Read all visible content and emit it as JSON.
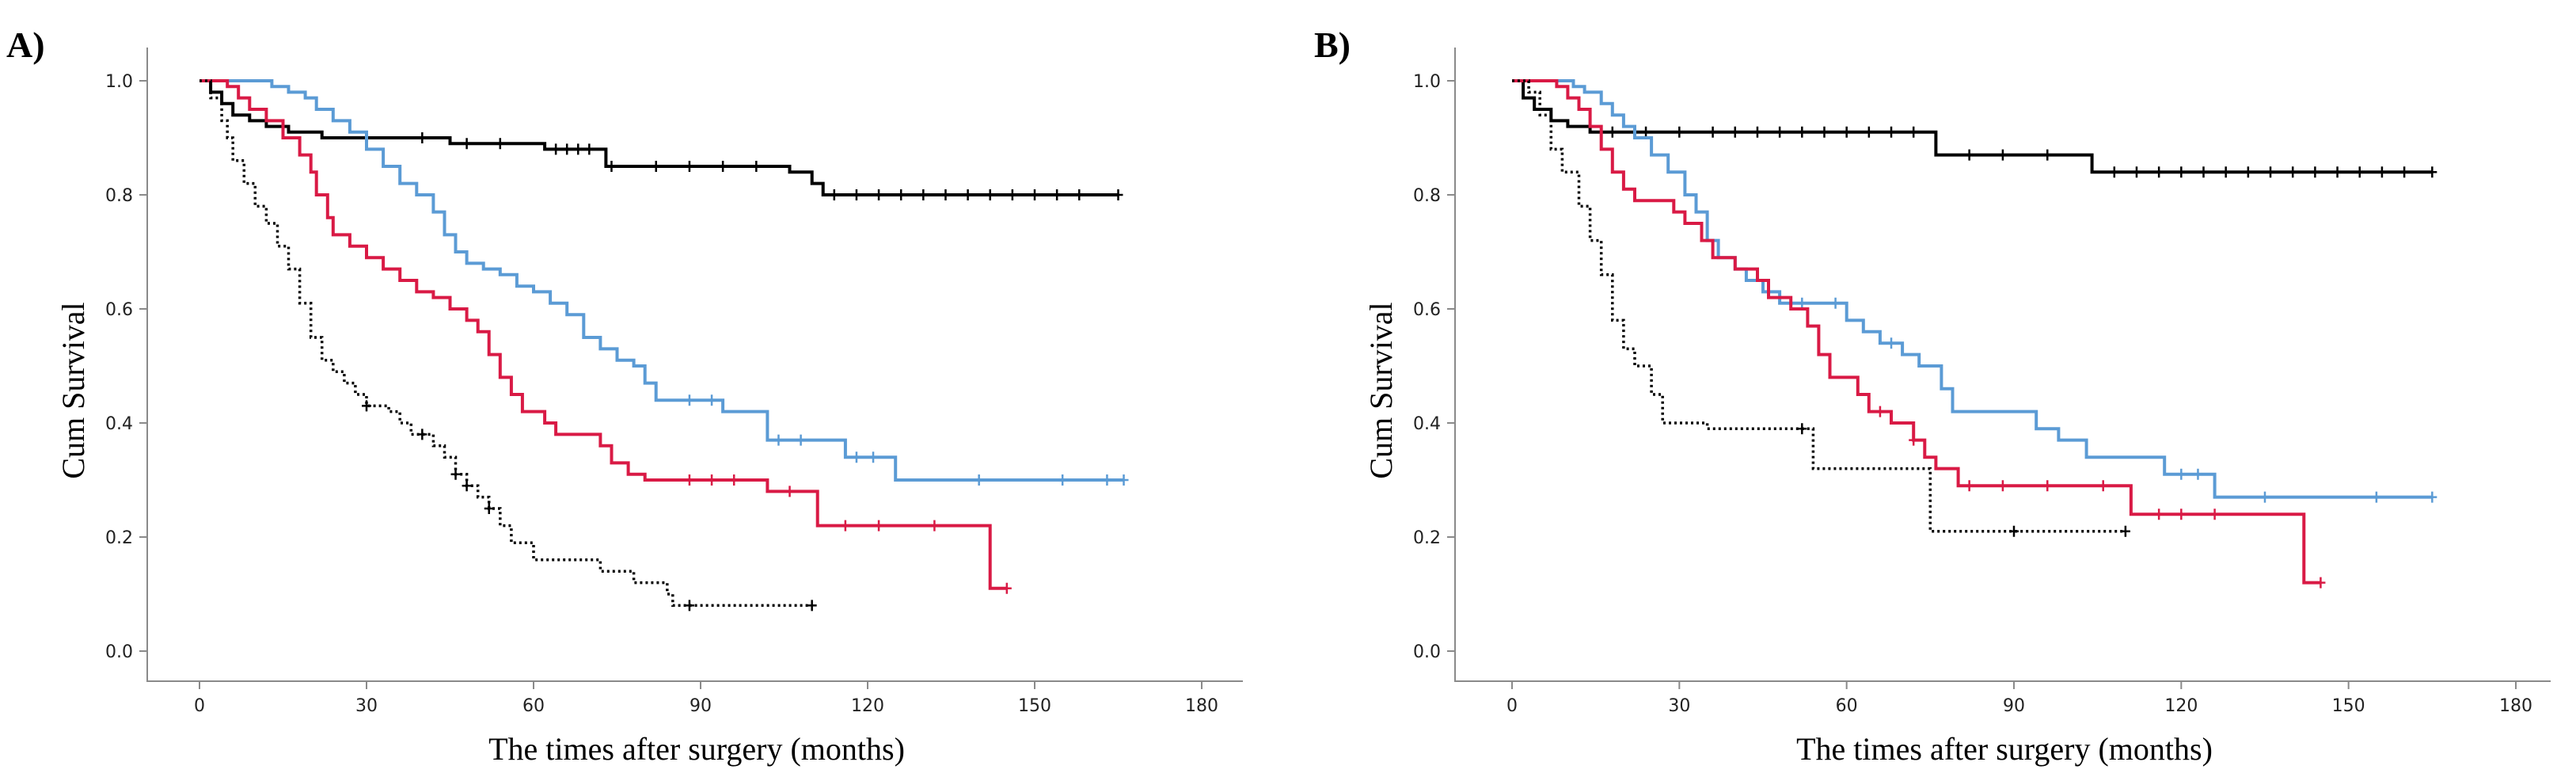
{
  "chart_data": [
    {
      "type": "line",
      "panel_label": "A)",
      "title": "",
      "xlabel": "The times after surgery (months)",
      "ylabel": "Cum Survival",
      "xlim": [
        0,
        180
      ],
      "ylim": [
        0,
        1.0
      ],
      "xticks": [
        "0",
        "30",
        "60",
        "90",
        "120",
        "150",
        "180"
      ],
      "yticks": [
        "0.0",
        "0.2",
        "0.4",
        "0.6",
        "0.8",
        "1.0"
      ],
      "series": [
        {
          "color": "#000000",
          "dash": "solid",
          "points": [
            [
              0,
              1.0
            ],
            [
              2,
              0.98
            ],
            [
              4,
              0.96
            ],
            [
              6,
              0.94
            ],
            [
              9,
              0.93
            ],
            [
              12,
              0.92
            ],
            [
              16,
              0.91
            ],
            [
              22,
              0.9
            ],
            [
              45,
              0.89
            ],
            [
              62,
              0.88
            ],
            [
              73,
              0.85
            ],
            [
              106,
              0.84
            ],
            [
              110,
              0.82
            ],
            [
              112,
              0.8
            ],
            [
              165,
              0.8
            ]
          ],
          "censors": [
            40,
            48,
            54,
            64,
            66,
            68,
            70,
            74,
            82,
            88,
            94,
            100,
            114,
            118,
            122,
            126,
            130,
            134,
            138,
            142,
            146,
            150,
            154,
            158,
            165
          ]
        },
        {
          "color": "#5b9bd5",
          "dash": "solid",
          "points": [
            [
              0,
              1.0
            ],
            [
              11,
              1.0
            ],
            [
              13,
              0.99
            ],
            [
              16,
              0.98
            ],
            [
              19,
              0.97
            ],
            [
              21,
              0.95
            ],
            [
              24,
              0.93
            ],
            [
              27,
              0.91
            ],
            [
              30,
              0.88
            ],
            [
              33,
              0.85
            ],
            [
              36,
              0.82
            ],
            [
              39,
              0.8
            ],
            [
              42,
              0.77
            ],
            [
              44,
              0.73
            ],
            [
              46,
              0.7
            ],
            [
              48,
              0.68
            ],
            [
              51,
              0.67
            ],
            [
              54,
              0.66
            ],
            [
              57,
              0.64
            ],
            [
              60,
              0.63
            ],
            [
              63,
              0.61
            ],
            [
              66,
              0.59
            ],
            [
              69,
              0.55
            ],
            [
              72,
              0.53
            ],
            [
              75,
              0.51
            ],
            [
              78,
              0.5
            ],
            [
              80,
              0.47
            ],
            [
              82,
              0.44
            ],
            [
              92,
              0.44
            ],
            [
              94,
              0.42
            ],
            [
              102,
              0.37
            ],
            [
              115,
              0.37
            ],
            [
              116,
              0.34
            ],
            [
              123,
              0.34
            ],
            [
              125,
              0.3
            ],
            [
              166,
              0.3
            ]
          ],
          "censors": [
            88,
            92,
            104,
            108,
            118,
            121,
            140,
            155,
            163,
            166
          ]
        },
        {
          "color": "#d91a45",
          "dash": "solid",
          "points": [
            [
              0,
              1.0
            ],
            [
              5,
              0.99
            ],
            [
              7,
              0.97
            ],
            [
              9,
              0.95
            ],
            [
              12,
              0.93
            ],
            [
              15,
              0.9
            ],
            [
              18,
              0.87
            ],
            [
              20,
              0.84
            ],
            [
              21,
              0.8
            ],
            [
              23,
              0.76
            ],
            [
              24,
              0.73
            ],
            [
              27,
              0.71
            ],
            [
              30,
              0.69
            ],
            [
              33,
              0.67
            ],
            [
              36,
              0.65
            ],
            [
              39,
              0.63
            ],
            [
              42,
              0.62
            ],
            [
              45,
              0.6
            ],
            [
              48,
              0.58
            ],
            [
              50,
              0.56
            ],
            [
              52,
              0.52
            ],
            [
              54,
              0.48
            ],
            [
              56,
              0.45
            ],
            [
              58,
              0.42
            ],
            [
              62,
              0.4
            ],
            [
              64,
              0.38
            ],
            [
              72,
              0.36
            ],
            [
              74,
              0.33
            ],
            [
              77,
              0.31
            ],
            [
              80,
              0.3
            ],
            [
              99,
              0.3
            ],
            [
              102,
              0.28
            ],
            [
              110,
              0.28
            ],
            [
              111,
              0.22
            ],
            [
              141,
              0.22
            ],
            [
              142,
              0.11
            ],
            [
              145,
              0.11
            ]
          ],
          "censors": [
            88,
            92,
            96,
            106,
            116,
            122,
            132,
            145
          ]
        },
        {
          "color": "#000000",
          "dash": "dotted",
          "points": [
            [
              0,
              1.0
            ],
            [
              2,
              0.97
            ],
            [
              4,
              0.93
            ],
            [
              5,
              0.9
            ],
            [
              6,
              0.86
            ],
            [
              8,
              0.82
            ],
            [
              10,
              0.78
            ],
            [
              12,
              0.75
            ],
            [
              14,
              0.71
            ],
            [
              16,
              0.67
            ],
            [
              18,
              0.61
            ],
            [
              20,
              0.55
            ],
            [
              22,
              0.51
            ],
            [
              24,
              0.49
            ],
            [
              26,
              0.47
            ],
            [
              28,
              0.45
            ],
            [
              30,
              0.43
            ],
            [
              34,
              0.42
            ],
            [
              36,
              0.4
            ],
            [
              38,
              0.38
            ],
            [
              42,
              0.36
            ],
            [
              44,
              0.34
            ],
            [
              46,
              0.31
            ],
            [
              48,
              0.29
            ],
            [
              50,
              0.27
            ],
            [
              52,
              0.25
            ],
            [
              54,
              0.22
            ],
            [
              56,
              0.19
            ],
            [
              60,
              0.16
            ],
            [
              72,
              0.14
            ],
            [
              78,
              0.12
            ],
            [
              84,
              0.1
            ],
            [
              85,
              0.08
            ],
            [
              110,
              0.08
            ]
          ],
          "censors": [
            30,
            40,
            46,
            48,
            52,
            88,
            110
          ]
        }
      ]
    },
    {
      "type": "line",
      "panel_label": "B)",
      "title": "",
      "xlabel": "The times after surgery (months)",
      "ylabel": "Cum Survival",
      "xlim": [
        0,
        180
      ],
      "ylim": [
        0,
        1.0
      ],
      "xticks": [
        "0",
        "30",
        "60",
        "90",
        "120",
        "150",
        "180"
      ],
      "yticks": [
        "0.0",
        "0.2",
        "0.4",
        "0.6",
        "0.8",
        "1.0"
      ],
      "series": [
        {
          "color": "#000000",
          "dash": "solid",
          "points": [
            [
              0,
              1.0
            ],
            [
              2,
              0.97
            ],
            [
              4,
              0.95
            ],
            [
              7,
              0.93
            ],
            [
              10,
              0.92
            ],
            [
              14,
              0.91
            ],
            [
              74,
              0.91
            ],
            [
              76,
              0.87
            ],
            [
              102,
              0.87
            ],
            [
              104,
              0.84
            ],
            [
              165,
              0.84
            ]
          ],
          "censors": [
            18,
            24,
            30,
            36,
            40,
            44,
            48,
            52,
            56,
            60,
            64,
            68,
            72,
            82,
            88,
            96,
            108,
            112,
            116,
            120,
            124,
            128,
            132,
            136,
            140,
            144,
            148,
            152,
            156,
            160,
            165
          ]
        },
        {
          "color": "#5b9bd5",
          "dash": "solid",
          "points": [
            [
              0,
              1.0
            ],
            [
              9,
              1.0
            ],
            [
              11,
              0.99
            ],
            [
              13,
              0.98
            ],
            [
              16,
              0.96
            ],
            [
              18,
              0.94
            ],
            [
              20,
              0.92
            ],
            [
              22,
              0.9
            ],
            [
              25,
              0.87
            ],
            [
              28,
              0.84
            ],
            [
              31,
              0.8
            ],
            [
              33,
              0.77
            ],
            [
              35,
              0.72
            ],
            [
              37,
              0.69
            ],
            [
              40,
              0.67
            ],
            [
              42,
              0.65
            ],
            [
              45,
              0.63
            ],
            [
              48,
              0.61
            ],
            [
              57,
              0.61
            ],
            [
              60,
              0.58
            ],
            [
              63,
              0.56
            ],
            [
              66,
              0.54
            ],
            [
              70,
              0.52
            ],
            [
              73,
              0.5
            ],
            [
              77,
              0.46
            ],
            [
              79,
              0.42
            ],
            [
              90,
              0.42
            ],
            [
              94,
              0.39
            ],
            [
              98,
              0.37
            ],
            [
              103,
              0.34
            ],
            [
              115,
              0.34
            ],
            [
              117,
              0.31
            ],
            [
              124,
              0.31
            ],
            [
              126,
              0.27
            ],
            [
              165,
              0.27
            ]
          ],
          "censors": [
            52,
            58,
            68,
            120,
            123,
            135,
            155,
            165
          ]
        },
        {
          "color": "#d91a45",
          "dash": "solid",
          "points": [
            [
              0,
              1.0
            ],
            [
              6,
              1.0
            ],
            [
              8,
              0.99
            ],
            [
              10,
              0.97
            ],
            [
              12,
              0.95
            ],
            [
              14,
              0.92
            ],
            [
              16,
              0.88
            ],
            [
              18,
              0.84
            ],
            [
              20,
              0.81
            ],
            [
              22,
              0.79
            ],
            [
              29,
              0.77
            ],
            [
              31,
              0.75
            ],
            [
              34,
              0.72
            ],
            [
              36,
              0.69
            ],
            [
              40,
              0.67
            ],
            [
              44,
              0.65
            ],
            [
              46,
              0.62
            ],
            [
              50,
              0.6
            ],
            [
              53,
              0.57
            ],
            [
              55,
              0.52
            ],
            [
              57,
              0.48
            ],
            [
              62,
              0.45
            ],
            [
              64,
              0.42
            ],
            [
              68,
              0.4
            ],
            [
              72,
              0.37
            ],
            [
              74,
              0.34
            ],
            [
              76,
              0.32
            ],
            [
              80,
              0.29
            ],
            [
              110,
              0.29
            ],
            [
              111,
              0.24
            ],
            [
              141,
              0.24
            ],
            [
              142,
              0.12
            ],
            [
              145,
              0.12
            ]
          ],
          "censors": [
            66,
            72,
            82,
            88,
            96,
            106,
            116,
            120,
            126,
            145
          ]
        },
        {
          "color": "#000000",
          "dash": "dotted",
          "points": [
            [
              0,
              1.0
            ],
            [
              3,
              0.98
            ],
            [
              5,
              0.94
            ],
            [
              7,
              0.88
            ],
            [
              9,
              0.84
            ],
            [
              12,
              0.78
            ],
            [
              14,
              0.72
            ],
            [
              16,
              0.66
            ],
            [
              18,
              0.58
            ],
            [
              20,
              0.53
            ],
            [
              22,
              0.5
            ],
            [
              25,
              0.45
            ],
            [
              27,
              0.4
            ],
            [
              35,
              0.39
            ],
            [
              53,
              0.39
            ],
            [
              54,
              0.32
            ],
            [
              74,
              0.32
            ],
            [
              75,
              0.21
            ],
            [
              110,
              0.21
            ]
          ],
          "censors": [
            52,
            90,
            110
          ]
        }
      ]
    }
  ]
}
